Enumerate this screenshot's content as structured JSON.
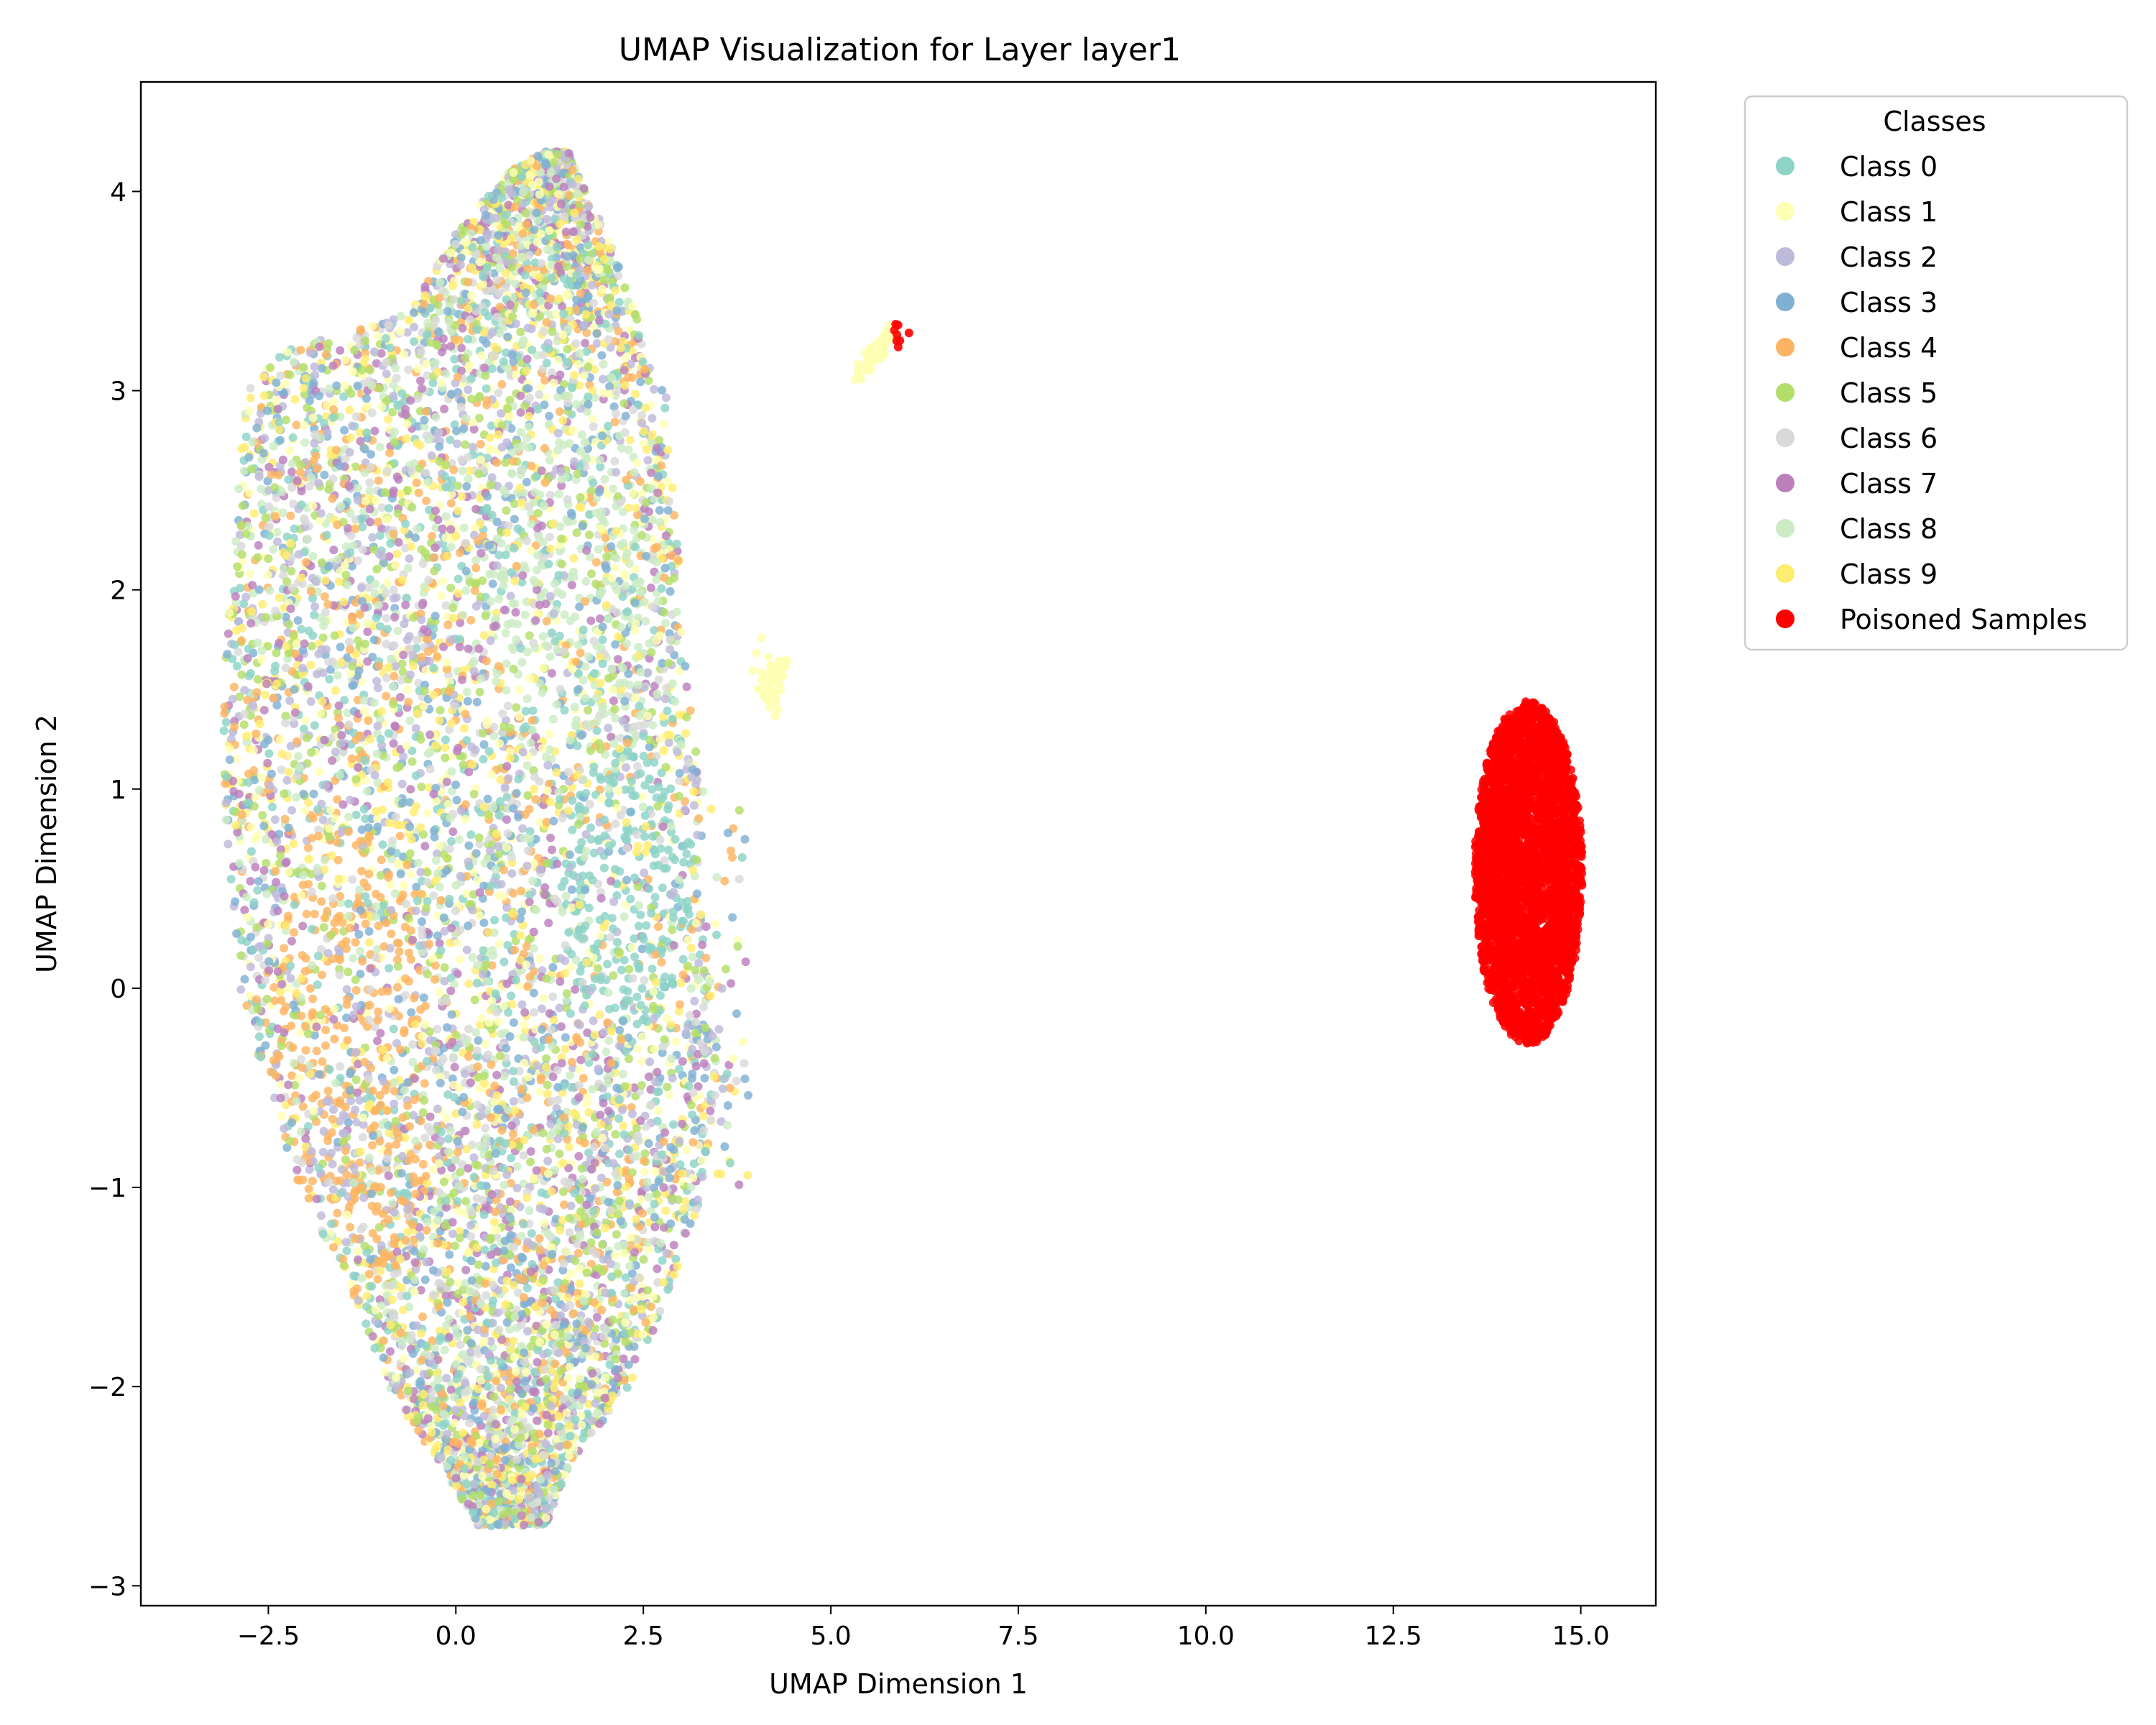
{
  "chart_data": {
    "type": "scatter",
    "title": "UMAP Visualization for Layer layer1",
    "xlabel": "UMAP Dimension 1",
    "ylabel": "UMAP Dimension 2",
    "xlim": [
      -4.2,
      16.0
    ],
    "ylim": [
      -3.1,
      4.55
    ],
    "xticks": [
      -2.5,
      0.0,
      2.5,
      5.0,
      7.5,
      10.0,
      12.5,
      15.0
    ],
    "xtick_labels": [
      "−2.5",
      "0.0",
      "2.5",
      "5.0",
      "7.5",
      "10.0",
      "12.5",
      "15.0"
    ],
    "yticks": [
      -3,
      -2,
      -1,
      0,
      1,
      2,
      3,
      4
    ],
    "ytick_labels": [
      "−3",
      "−2",
      "−1",
      "0",
      "1",
      "2",
      "3",
      "4"
    ],
    "grid": false,
    "legend": {
      "title": "Classes",
      "placement": "outside upper right",
      "entries": [
        {
          "name": "Class 0",
          "color": "#8dd3c7"
        },
        {
          "name": "Class 1",
          "color": "#ffffb3"
        },
        {
          "name": "Class 2",
          "color": "#bebada"
        },
        {
          "name": "Class 3",
          "color": "#80b1d3"
        },
        {
          "name": "Class 4",
          "color": "#fdb462"
        },
        {
          "name": "Class 5",
          "color": "#b3de69"
        },
        {
          "name": "Class 6",
          "color": "#d9d9d9"
        },
        {
          "name": "Class 7",
          "color": "#bc80bd"
        },
        {
          "name": "Class 8",
          "color": "#ccebc5"
        },
        {
          "name": "Class 9",
          "color": "#ffed6f"
        },
        {
          "name": "Poisoned Samples",
          "color": "#ff0000"
        }
      ]
    },
    "clusters": [
      {
        "series": "All classes (mixed)",
        "shape": "large blob",
        "x_range": [
          -3.1,
          3.3
        ],
        "y_range": [
          -2.7,
          4.2
        ],
        "center": [
          0.5,
          0.7
        ]
      },
      {
        "series": "Class 0",
        "shape": "dense region",
        "center": [
          2.3,
          0.5
        ]
      },
      {
        "series": "Class 4",
        "shape": "dense region",
        "center": [
          -1.5,
          0.0
        ]
      },
      {
        "series": "Class 1",
        "shape": "small outlier cluster",
        "center": [
          5.6,
          3.2
        ]
      },
      {
        "series": "Class 1",
        "shape": "small outlier cluster",
        "center": [
          4.2,
          1.5
        ]
      },
      {
        "series": "Poisoned Samples",
        "shape": "small outlier cluster",
        "center": [
          5.95,
          3.28
        ]
      },
      {
        "series": "Poisoned Samples",
        "shape": "dense ellipse",
        "x_range": [
          13.6,
          15.1
        ],
        "y_range": [
          -0.3,
          1.47
        ],
        "center": [
          14.3,
          0.58
        ]
      }
    ]
  }
}
